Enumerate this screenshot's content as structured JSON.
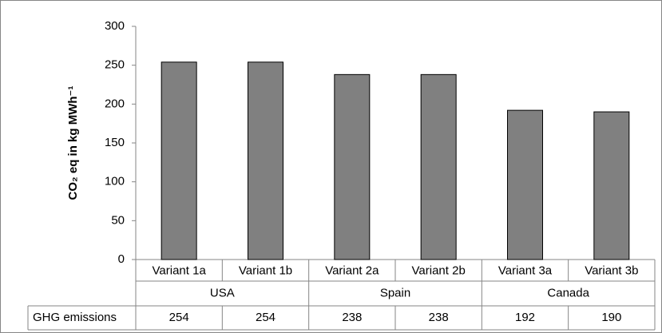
{
  "chart_data": {
    "type": "bar",
    "y_label": "CO₂ eq in kg MWh⁻¹",
    "categories": [
      "Variant 1a",
      "Variant 1b",
      "Variant 2a",
      "Variant 2b",
      "Variant 3a",
      "Variant 3b"
    ],
    "groups": [
      "USA",
      "Spain",
      "Canada"
    ],
    "series": [
      {
        "name": "GHG emissions",
        "color": "#808080",
        "values": [
          254,
          254,
          238,
          238,
          192,
          190
        ]
      }
    ],
    "ylim": [
      0,
      300
    ],
    "yticks": [
      0,
      50,
      100,
      150,
      200,
      250,
      300
    ],
    "grid": false
  }
}
